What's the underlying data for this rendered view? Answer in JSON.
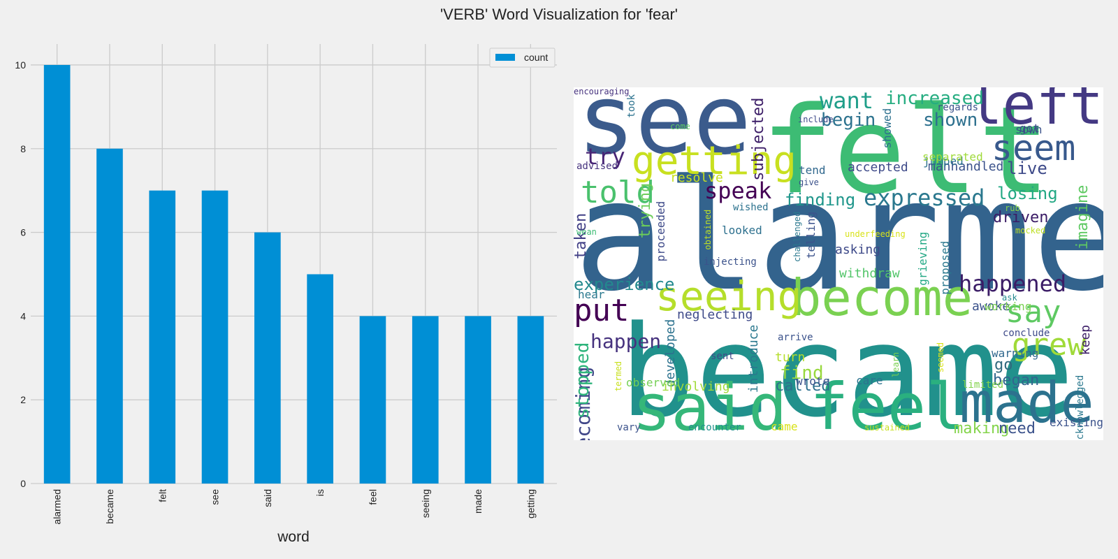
{
  "figure": {
    "title": "'VERB' Word Visualization for 'fear'"
  },
  "chart_data": [
    {
      "type": "bar",
      "categories": [
        "alarmed",
        "became",
        "felt",
        "see",
        "said",
        "is",
        "feel",
        "seeing",
        "made",
        "getting"
      ],
      "values": [
        10,
        8,
        7,
        7,
        6,
        5,
        4,
        4,
        4,
        4
      ],
      "series": [
        {
          "name": "count",
          "values": [
            10,
            8,
            7,
            7,
            6,
            5,
            4,
            4,
            4,
            4
          ]
        }
      ],
      "xlabel": "word",
      "ylabel": "",
      "ylim": [
        0,
        10.5
      ],
      "yticks": [
        "0",
        "2",
        "4",
        "6",
        "8",
        "10"
      ],
      "legend": {
        "label": "count",
        "position": "top-right"
      },
      "grid": true,
      "colors": {
        "bar": "#008fd5",
        "grid": "#cbcbcb",
        "background": "#f0f0f0"
      }
    },
    {
      "type": "wordcloud",
      "palette": "viridis",
      "words": [
        {
          "text": "alarmed",
          "color": "#33638d"
        },
        {
          "text": "became",
          "color": "#21918c"
        },
        {
          "text": "felt",
          "color": "#3dbc74"
        },
        {
          "text": "see",
          "color": "#3b5b8c"
        },
        {
          "text": "said",
          "color": "#35b779"
        },
        {
          "text": "feel",
          "color": "#2ab07f"
        },
        {
          "text": "made",
          "color": "#2c728e"
        },
        {
          "text": "become",
          "color": "#7ad151"
        },
        {
          "text": "seeing",
          "color": "#b5de2b"
        },
        {
          "text": "left",
          "color": "#443983"
        },
        {
          "text": "getting",
          "color": "#c8e020"
        },
        {
          "text": "seem",
          "color": "#38598c"
        },
        {
          "text": "told",
          "color": "#4ac16d"
        },
        {
          "text": "put",
          "color": "#440154"
        },
        {
          "text": "say",
          "color": "#5ec962"
        },
        {
          "text": "grew",
          "color": "#a0da39"
        },
        {
          "text": "happened",
          "color": "#3b1c66"
        },
        {
          "text": "speak",
          "color": "#440154"
        },
        {
          "text": "try",
          "color": "#482475"
        },
        {
          "text": "want",
          "color": "#1f9e89"
        },
        {
          "text": "expressed",
          "color": "#2a788e"
        },
        {
          "text": "increased",
          "color": "#26ad81"
        },
        {
          "text": "begin",
          "color": "#2c728e"
        },
        {
          "text": "shown",
          "color": "#2d708e"
        },
        {
          "text": "live",
          "color": "#3e4a89"
        },
        {
          "text": "losing",
          "color": "#22a884"
        },
        {
          "text": "driven",
          "color": "#3b1c66"
        },
        {
          "text": "finding",
          "color": "#1f968b"
        },
        {
          "text": "trying",
          "color": "#6ccd5a"
        },
        {
          "text": "subjected",
          "color": "#3b1c66"
        },
        {
          "text": "taken",
          "color": "#424086"
        },
        {
          "text": "imagine",
          "color": "#5ec962"
        },
        {
          "text": "experience",
          "color": "#23898e"
        },
        {
          "text": "becoming",
          "color": "#404688"
        },
        {
          "text": "happen",
          "color": "#46327e"
        },
        {
          "text": "stopped",
          "color": "#2fb47c"
        },
        {
          "text": "find",
          "color": "#98d83e"
        },
        {
          "text": "go",
          "color": "#30697e"
        },
        {
          "text": "began",
          "color": "#31668e"
        },
        {
          "text": "keep",
          "color": "#3b1c66"
        },
        {
          "text": "making",
          "color": "#84d44b"
        },
        {
          "text": "need",
          "color": "#3b528b"
        },
        {
          "text": "called",
          "color": "#2d708e"
        },
        {
          "text": "turn",
          "color": "#b5de2b"
        },
        {
          "text": "resolve",
          "color": "#c8e020"
        },
        {
          "text": "manhandled",
          "color": "#3b528b"
        },
        {
          "text": "accepted",
          "color": "#3e4a89"
        },
        {
          "text": "jumped",
          "color": "#2c728e"
        },
        {
          "text": "separated",
          "color": "#9fda3a"
        },
        {
          "text": "sown",
          "color": "#3b528b"
        },
        {
          "text": "got",
          "color": "#3e4a89"
        },
        {
          "text": "regards",
          "color": "#3b528b"
        },
        {
          "text": "neglecting",
          "color": "#3e4a89"
        },
        {
          "text": "proceeded",
          "color": "#3e4a89"
        },
        {
          "text": "developed",
          "color": "#2c728e"
        },
        {
          "text": "introduce",
          "color": "#2a788e"
        },
        {
          "text": "involving",
          "color": "#a0da39"
        },
        {
          "text": "observed",
          "color": "#75d054"
        },
        {
          "text": "wrote",
          "color": "#3b528b"
        },
        {
          "text": "care",
          "color": "#2c728e"
        },
        {
          "text": "withdraw",
          "color": "#52c569"
        },
        {
          "text": "asking",
          "color": "#3e4a89"
        },
        {
          "text": "looked",
          "color": "#2d708e"
        },
        {
          "text": "awoke",
          "color": "#3b528b"
        },
        {
          "text": "working",
          "color": "#7ad151"
        },
        {
          "text": "warning",
          "color": "#31688e"
        },
        {
          "text": "limited",
          "color": "#84d44b"
        },
        {
          "text": "conclude",
          "color": "#3e4a89"
        },
        {
          "text": "existing",
          "color": "#3b528b"
        },
        {
          "text": "vary",
          "color": "#3b528b"
        },
        {
          "text": "encounter",
          "color": "#21918c"
        },
        {
          "text": "sustained",
          "color": "#c8e020"
        },
        {
          "text": "came",
          "color": "#d8e219"
        },
        {
          "text": "sent",
          "color": "#3e4a89"
        },
        {
          "text": "arrive",
          "color": "#3b528b"
        },
        {
          "text": "obtained",
          "color": "#bddf26"
        },
        {
          "text": "injecting",
          "color": "#3b528b"
        },
        {
          "text": "wished",
          "color": "#2c728e"
        },
        {
          "text": "tend",
          "color": "#31688e"
        },
        {
          "text": "give",
          "color": "#3b528b"
        },
        {
          "text": "telling",
          "color": "#3b528b"
        },
        {
          "text": "challenged",
          "color": "#2a788e"
        },
        {
          "text": "underfeeding",
          "color": "#d8e219"
        },
        {
          "text": "grieving",
          "color": "#22a884"
        },
        {
          "text": "proposed",
          "color": "#2a788e"
        },
        {
          "text": "showed",
          "color": "#2d708e"
        },
        {
          "text": "include",
          "color": "#3e4a89"
        },
        {
          "text": "come",
          "color": "#5ec962"
        },
        {
          "text": "took",
          "color": "#2c728e"
        },
        {
          "text": "advised",
          "color": "#46327e"
        },
        {
          "text": "wean",
          "color": "#3dbc74"
        },
        {
          "text": "hear",
          "color": "#2a788e"
        },
        {
          "text": "ask",
          "color": "#23898e"
        },
        {
          "text": "mocked",
          "color": "#bddf26"
        },
        {
          "text": "rub",
          "color": "#84d44b"
        },
        {
          "text": "learn",
          "color": "#7ad151"
        },
        {
          "text": "seemed",
          "color": "#d8e219"
        },
        {
          "text": "acknowledged",
          "color": "#2a788e"
        },
        {
          "text": "termed",
          "color": "#c8e020"
        },
        {
          "text": "encouraging",
          "color": "#46327e"
        }
      ]
    }
  ]
}
